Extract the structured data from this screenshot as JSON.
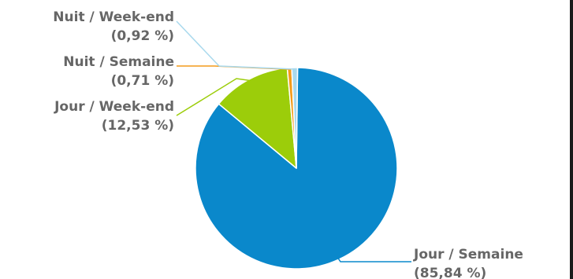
{
  "chart_data": {
    "type": "pie",
    "title": "",
    "slices": [
      {
        "label": "Jour / Semaine",
        "pct_label": "(85,84 %)",
        "value": 85.84,
        "color": "#0a88cb"
      },
      {
        "label": "Jour / Week-end",
        "pct_label": "(12,53 %)",
        "value": 12.53,
        "color": "#9ccd0a"
      },
      {
        "label": "Nuit / Semaine",
        "pct_label": "(0,71 %)",
        "value": 0.71,
        "color": "#f39b1b"
      },
      {
        "label": "Nuit / Week-end",
        "pct_label": "(0,92 %)",
        "value": 0.92,
        "color": "#a9d9ed"
      }
    ],
    "legend": "none",
    "data_labels": "outside-with-connectors"
  }
}
